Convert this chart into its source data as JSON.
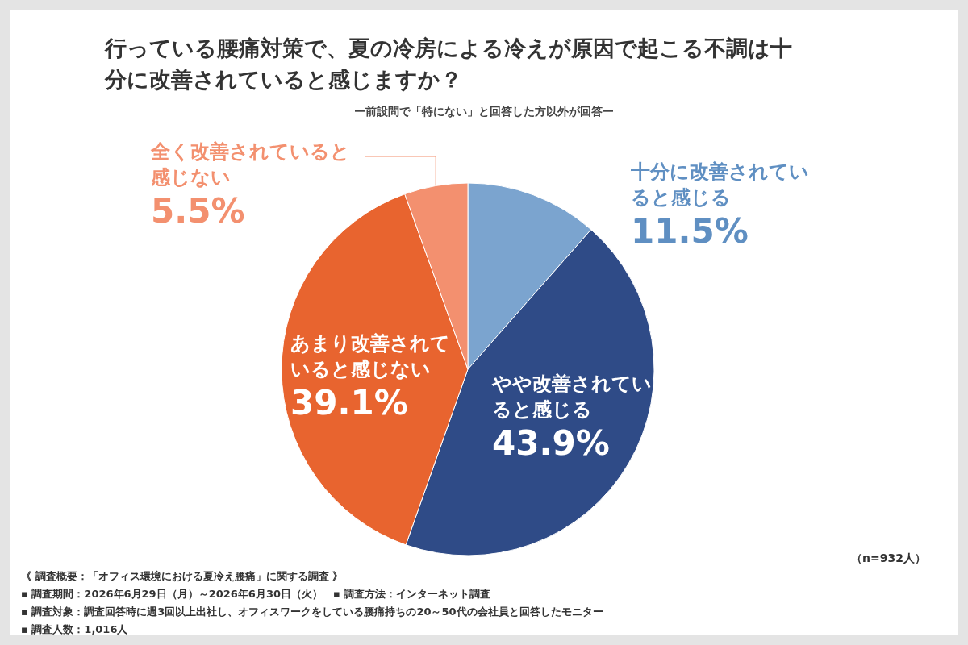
{
  "chart_data": {
    "type": "pie",
    "title": "行っている腰痛対策で、夏の冷房による冷えが原因で起こる不調は十分に改善されていると感じますか？",
    "subtitle": "ー前設問で「特にない」と回答した方以外が回答ー",
    "categories": [
      "十分に改善されていると感じる",
      "やや改善されていると感じる",
      "あまり改善されていると感じない",
      "全く改善されていると感じない"
    ],
    "values": [
      11.5,
      43.9,
      39.1,
      5.5
    ],
    "colors": [
      "#7ba4cf",
      "#2f4b87",
      "#e8642f",
      "#f3906f"
    ],
    "value_labels": [
      "11.5%",
      "43.9%",
      "39.1%",
      "5.5%"
    ],
    "annotations": [
      "（n=932人）",
      "《 調査概要：「オフィス環境における夏冷え腰痛」に関する調査 》",
      "▪ 調査期間：2026年6月29日（月）～2026年6月30日（火）　▪ 調査方法：インターネット調査",
      "▪ 調査対象：調査回答時に週3回以上出社し、オフィスワークをしている腰痛持ちの20～50代の会社員と回答したモニター",
      "▪ 調査人数：1,016人"
    ]
  }
}
